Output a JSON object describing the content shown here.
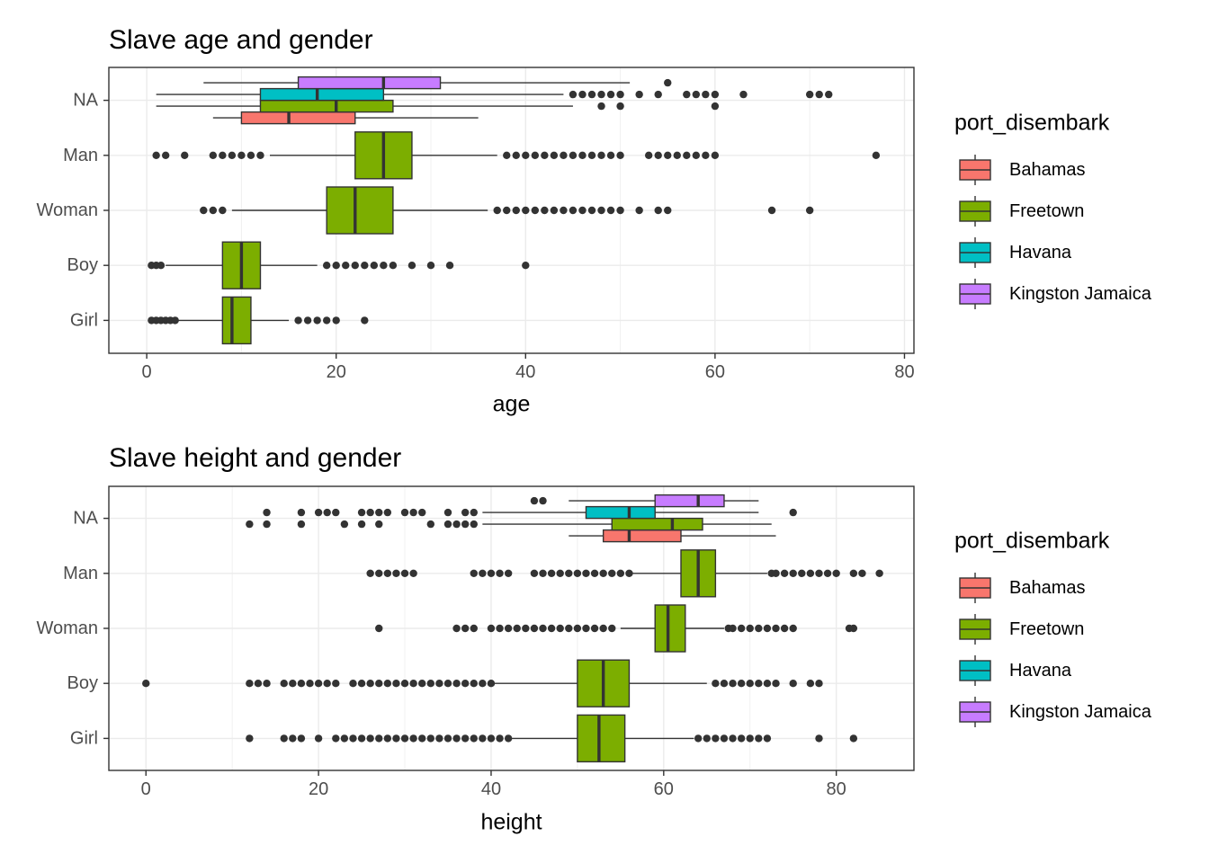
{
  "chart_data": [
    {
      "type": "boxplot",
      "orientation": "horizontal",
      "title": "Slave age and gender",
      "xlabel": "age",
      "ylabel": "",
      "xlim": [
        -4,
        81
      ],
      "x_ticks": [
        0,
        20,
        40,
        60,
        80
      ],
      "categories": [
        "Girl",
        "Boy",
        "Woman",
        "Man",
        "NA"
      ],
      "grid": true,
      "legend_title": "port_disembark",
      "legend_position": "right",
      "series": [
        {
          "name": "Bahamas",
          "color": "#F8766D"
        },
        {
          "name": "Freetown",
          "color": "#7CAE00"
        },
        {
          "name": "Havana",
          "color": "#00BFC4"
        },
        {
          "name": "Kingston Jamaica",
          "color": "#C77CFF"
        }
      ],
      "boxes": [
        {
          "category": "Girl",
          "series": "Freetown",
          "slot": 0,
          "slots": 1,
          "whisker_low": 3,
          "q1": 8,
          "median": 9,
          "q3": 11,
          "whisker_high": 15,
          "outliers": [
            0.5,
            1,
            1.5,
            2,
            2.5,
            3,
            16,
            17,
            18,
            19,
            20,
            23
          ]
        },
        {
          "category": "Boy",
          "series": "Freetown",
          "slot": 0,
          "slots": 1,
          "whisker_low": 2,
          "q1": 8,
          "median": 10,
          "q3": 12,
          "whisker_high": 18,
          "outliers": [
            0.5,
            1,
            1.5,
            19,
            20,
            21,
            22,
            23,
            24,
            25,
            26,
            28,
            30,
            32,
            40
          ]
        },
        {
          "category": "Woman",
          "series": "Freetown",
          "slot": 0,
          "slots": 1,
          "whisker_low": 9,
          "q1": 19,
          "median": 22,
          "q3": 26,
          "whisker_high": 36,
          "outliers": [
            6,
            7,
            8,
            37,
            38,
            39,
            40,
            41,
            42,
            43,
            44,
            45,
            46,
            47,
            48,
            49,
            50,
            52,
            54,
            55,
            66,
            70
          ]
        },
        {
          "category": "Man",
          "series": "Freetown",
          "slot": 0,
          "slots": 1,
          "whisker_low": 13,
          "q1": 22,
          "median": 25,
          "q3": 28,
          "whisker_high": 37,
          "outliers": [
            1,
            2,
            4,
            7,
            8,
            9,
            10,
            11,
            12,
            38,
            39,
            40,
            41,
            42,
            43,
            44,
            45,
            46,
            47,
            48,
            49,
            50,
            53,
            54,
            55,
            56,
            57,
            58,
            59,
            60,
            77
          ]
        },
        {
          "category": "NA",
          "series": "Bahamas",
          "slot": 0,
          "slots": 4,
          "whisker_low": 7,
          "q1": 10,
          "median": 15,
          "q3": 22,
          "whisker_high": 35,
          "outliers": []
        },
        {
          "category": "NA",
          "series": "Freetown",
          "slot": 1,
          "slots": 4,
          "whisker_low": 1,
          "q1": 12,
          "median": 20,
          "q3": 26,
          "whisker_high": 45,
          "outliers": [
            48,
            50,
            60
          ]
        },
        {
          "category": "NA",
          "series": "Havana",
          "slot": 2,
          "slots": 4,
          "whisker_low": 1,
          "q1": 12,
          "median": 18,
          "q3": 25,
          "whisker_high": 44,
          "outliers": [
            45,
            46,
            47,
            48,
            49,
            50,
            52,
            54,
            57,
            58,
            59,
            60,
            63,
            70,
            71,
            72
          ]
        },
        {
          "category": "NA",
          "series": "Kingston Jamaica",
          "slot": 3,
          "slots": 4,
          "whisker_low": 6,
          "q1": 16,
          "median": 25,
          "q3": 31,
          "whisker_high": 51,
          "outliers": [
            55
          ]
        }
      ]
    },
    {
      "type": "boxplot",
      "orientation": "horizontal",
      "title": "Slave height and gender",
      "xlabel": "height",
      "ylabel": "",
      "xlim": [
        -4.3,
        89
      ],
      "x_ticks": [
        0,
        20,
        40,
        60,
        80
      ],
      "categories": [
        "Girl",
        "Boy",
        "Woman",
        "Man",
        "NA"
      ],
      "grid": true,
      "legend_title": "port_disembark",
      "legend_position": "right",
      "series": [
        {
          "name": "Bahamas",
          "color": "#F8766D"
        },
        {
          "name": "Freetown",
          "color": "#7CAE00"
        },
        {
          "name": "Havana",
          "color": "#00BFC4"
        },
        {
          "name": "Kingston Jamaica",
          "color": "#C77CFF"
        }
      ],
      "boxes": [
        {
          "category": "Girl",
          "series": "Freetown",
          "slot": 0,
          "slots": 1,
          "whisker_low": 42,
          "q1": 50,
          "median": 52.5,
          "q3": 55.5,
          "whisker_high": 63.5,
          "outliers": [
            12,
            16,
            17,
            18,
            20,
            22,
            23,
            24,
            25,
            26,
            27,
            28,
            29,
            30,
            31,
            32,
            33,
            34,
            35,
            36,
            37,
            38,
            39,
            40,
            41,
            42,
            64,
            65,
            66,
            67,
            68,
            69,
            70,
            71,
            72,
            78,
            82
          ]
        },
        {
          "category": "Boy",
          "series": "Freetown",
          "slot": 0,
          "slots": 1,
          "whisker_low": 40,
          "q1": 50,
          "median": 53,
          "q3": 56,
          "whisker_high": 65,
          "outliers": [
            0,
            12,
            13,
            14,
            16,
            17,
            18,
            19,
            20,
            21,
            22,
            24,
            25,
            26,
            27,
            28,
            29,
            30,
            31,
            32,
            33,
            34,
            35,
            36,
            37,
            38,
            39,
            40,
            66,
            67,
            68,
            69,
            70,
            71,
            72,
            73,
            75,
            77,
            78
          ]
        },
        {
          "category": "Woman",
          "series": "Freetown",
          "slot": 0,
          "slots": 1,
          "whisker_low": 55,
          "q1": 59,
          "median": 60.5,
          "q3": 62.5,
          "whisker_high": 67,
          "outliers": [
            27,
            36,
            37,
            38,
            40,
            41,
            42,
            43,
            44,
            45,
            46,
            47,
            48,
            49,
            50,
            51,
            52,
            53,
            54,
            67.5,
            68,
            69,
            70,
            71,
            72,
            73,
            74,
            75,
            81.5,
            82
          ]
        },
        {
          "category": "Man",
          "series": "Freetown",
          "slot": 0,
          "slots": 1,
          "whisker_low": 56,
          "q1": 62,
          "median": 64,
          "q3": 66,
          "whisker_high": 72,
          "outliers": [
            26,
            27,
            28,
            29,
            30,
            31,
            38,
            39,
            40,
            41,
            42,
            45,
            46,
            47,
            48,
            49,
            50,
            51,
            52,
            53,
            54,
            55,
            56,
            72.5,
            73,
            74,
            75,
            76,
            77,
            78,
            79,
            80,
            82,
            83,
            85
          ]
        },
        {
          "category": "NA",
          "series": "Bahamas",
          "slot": 0,
          "slots": 4,
          "whisker_low": 49,
          "q1": 53,
          "median": 56,
          "q3": 62,
          "whisker_high": 73,
          "outliers": []
        },
        {
          "category": "NA",
          "series": "Freetown",
          "slot": 1,
          "slots": 4,
          "whisker_low": 39,
          "q1": 54,
          "median": 61,
          "q3": 64.5,
          "whisker_high": 72.5,
          "outliers": [
            12,
            14,
            18,
            23,
            25,
            27,
            33,
            35,
            36,
            37,
            38
          ]
        },
        {
          "category": "NA",
          "series": "Havana",
          "slot": 2,
          "slots": 4,
          "whisker_low": 39,
          "q1": 51,
          "median": 56,
          "q3": 59,
          "whisker_high": 71,
          "outliers": [
            14,
            18,
            20,
            21,
            22,
            25,
            26,
            27,
            28,
            30,
            31,
            32,
            35,
            37,
            38,
            75
          ]
        },
        {
          "category": "NA",
          "series": "Kingston Jamaica",
          "slot": 3,
          "slots": 4,
          "whisker_low": 49,
          "q1": 59,
          "median": 64,
          "q3": 67,
          "whisker_high": 71,
          "outliers": [
            45,
            46
          ]
        }
      ]
    }
  ]
}
